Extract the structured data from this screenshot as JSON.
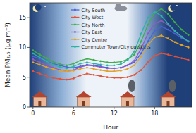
{
  "chart_data": {
    "type": "line",
    "x_label": "Hour",
    "y_label": "Mean PM₂.₅ (μg m⁻³)",
    "x": [
      0,
      1,
      2,
      3,
      4,
      5,
      6,
      7,
      8,
      9,
      10,
      11,
      12,
      13,
      14,
      15,
      16,
      17,
      18,
      19,
      20,
      21,
      22,
      23
    ],
    "xlim": [
      -0.5,
      23.5
    ],
    "xticks": [
      0,
      6,
      12,
      18
    ],
    "ylim": [
      0,
      17.5
    ],
    "yticks": [
      0,
      5,
      10,
      15
    ],
    "legend": "upper left",
    "marker": "o",
    "series": [
      {
        "name": "City South",
        "color": "#4a63d8",
        "values": [
          8.5,
          8.1,
          7.7,
          7.3,
          7.0,
          6.7,
          6.6,
          6.8,
          7.1,
          7.0,
          6.8,
          6.6,
          6.5,
          6.6,
          7.0,
          7.5,
          9.0,
          11.0,
          12.8,
          13.5,
          13.0,
          12.3,
          11.6,
          11.0
        ]
      },
      {
        "name": "City West",
        "color": "#e0533a",
        "values": [
          6.0,
          5.6,
          5.2,
          4.9,
          4.7,
          4.6,
          4.8,
          5.3,
          5.6,
          5.4,
          5.2,
          5.0,
          4.9,
          4.9,
          5.0,
          5.4,
          6.2,
          7.5,
          8.6,
          9.0,
          8.8,
          8.5,
          8.2,
          7.9
        ]
      },
      {
        "name": "City North",
        "color": "#3fae4a",
        "values": [
          9.5,
          8.8,
          8.2,
          7.6,
          7.2,
          7.0,
          7.3,
          7.8,
          8.1,
          7.9,
          7.7,
          7.5,
          7.5,
          7.6,
          8.0,
          8.8,
          11.0,
          13.8,
          15.8,
          16.5,
          15.6,
          14.2,
          13.0,
          12.1
        ]
      },
      {
        "name": "City East",
        "color": "#8e5bc4",
        "values": [
          8.0,
          7.5,
          7.0,
          6.6,
          6.2,
          6.0,
          6.2,
          6.7,
          7.0,
          6.9,
          6.7,
          6.5,
          6.5,
          6.6,
          7.0,
          7.8,
          9.8,
          12.3,
          14.0,
          14.5,
          13.8,
          12.7,
          11.8,
          11.0
        ]
      },
      {
        "name": "City Centre",
        "color": "#e3a32b",
        "values": [
          7.5,
          7.1,
          6.7,
          6.4,
          6.1,
          6.0,
          6.1,
          6.4,
          6.6,
          6.4,
          6.2,
          6.0,
          6.0,
          6.1,
          6.4,
          7.0,
          8.5,
          10.4,
          11.7,
          12.0,
          11.5,
          10.9,
          10.4,
          10.0
        ]
      },
      {
        "name": "Commuter Town/City outskirts",
        "color": "#2bb3a3",
        "values": [
          9.0,
          8.3,
          7.7,
          7.1,
          6.7,
          6.5,
          6.8,
          7.3,
          7.5,
          7.3,
          7.1,
          7.0,
          7.0,
          7.2,
          7.9,
          9.3,
          12.3,
          15.0,
          16.0,
          15.3,
          14.0,
          12.8,
          11.8,
          11.0
        ]
      }
    ]
  }
}
